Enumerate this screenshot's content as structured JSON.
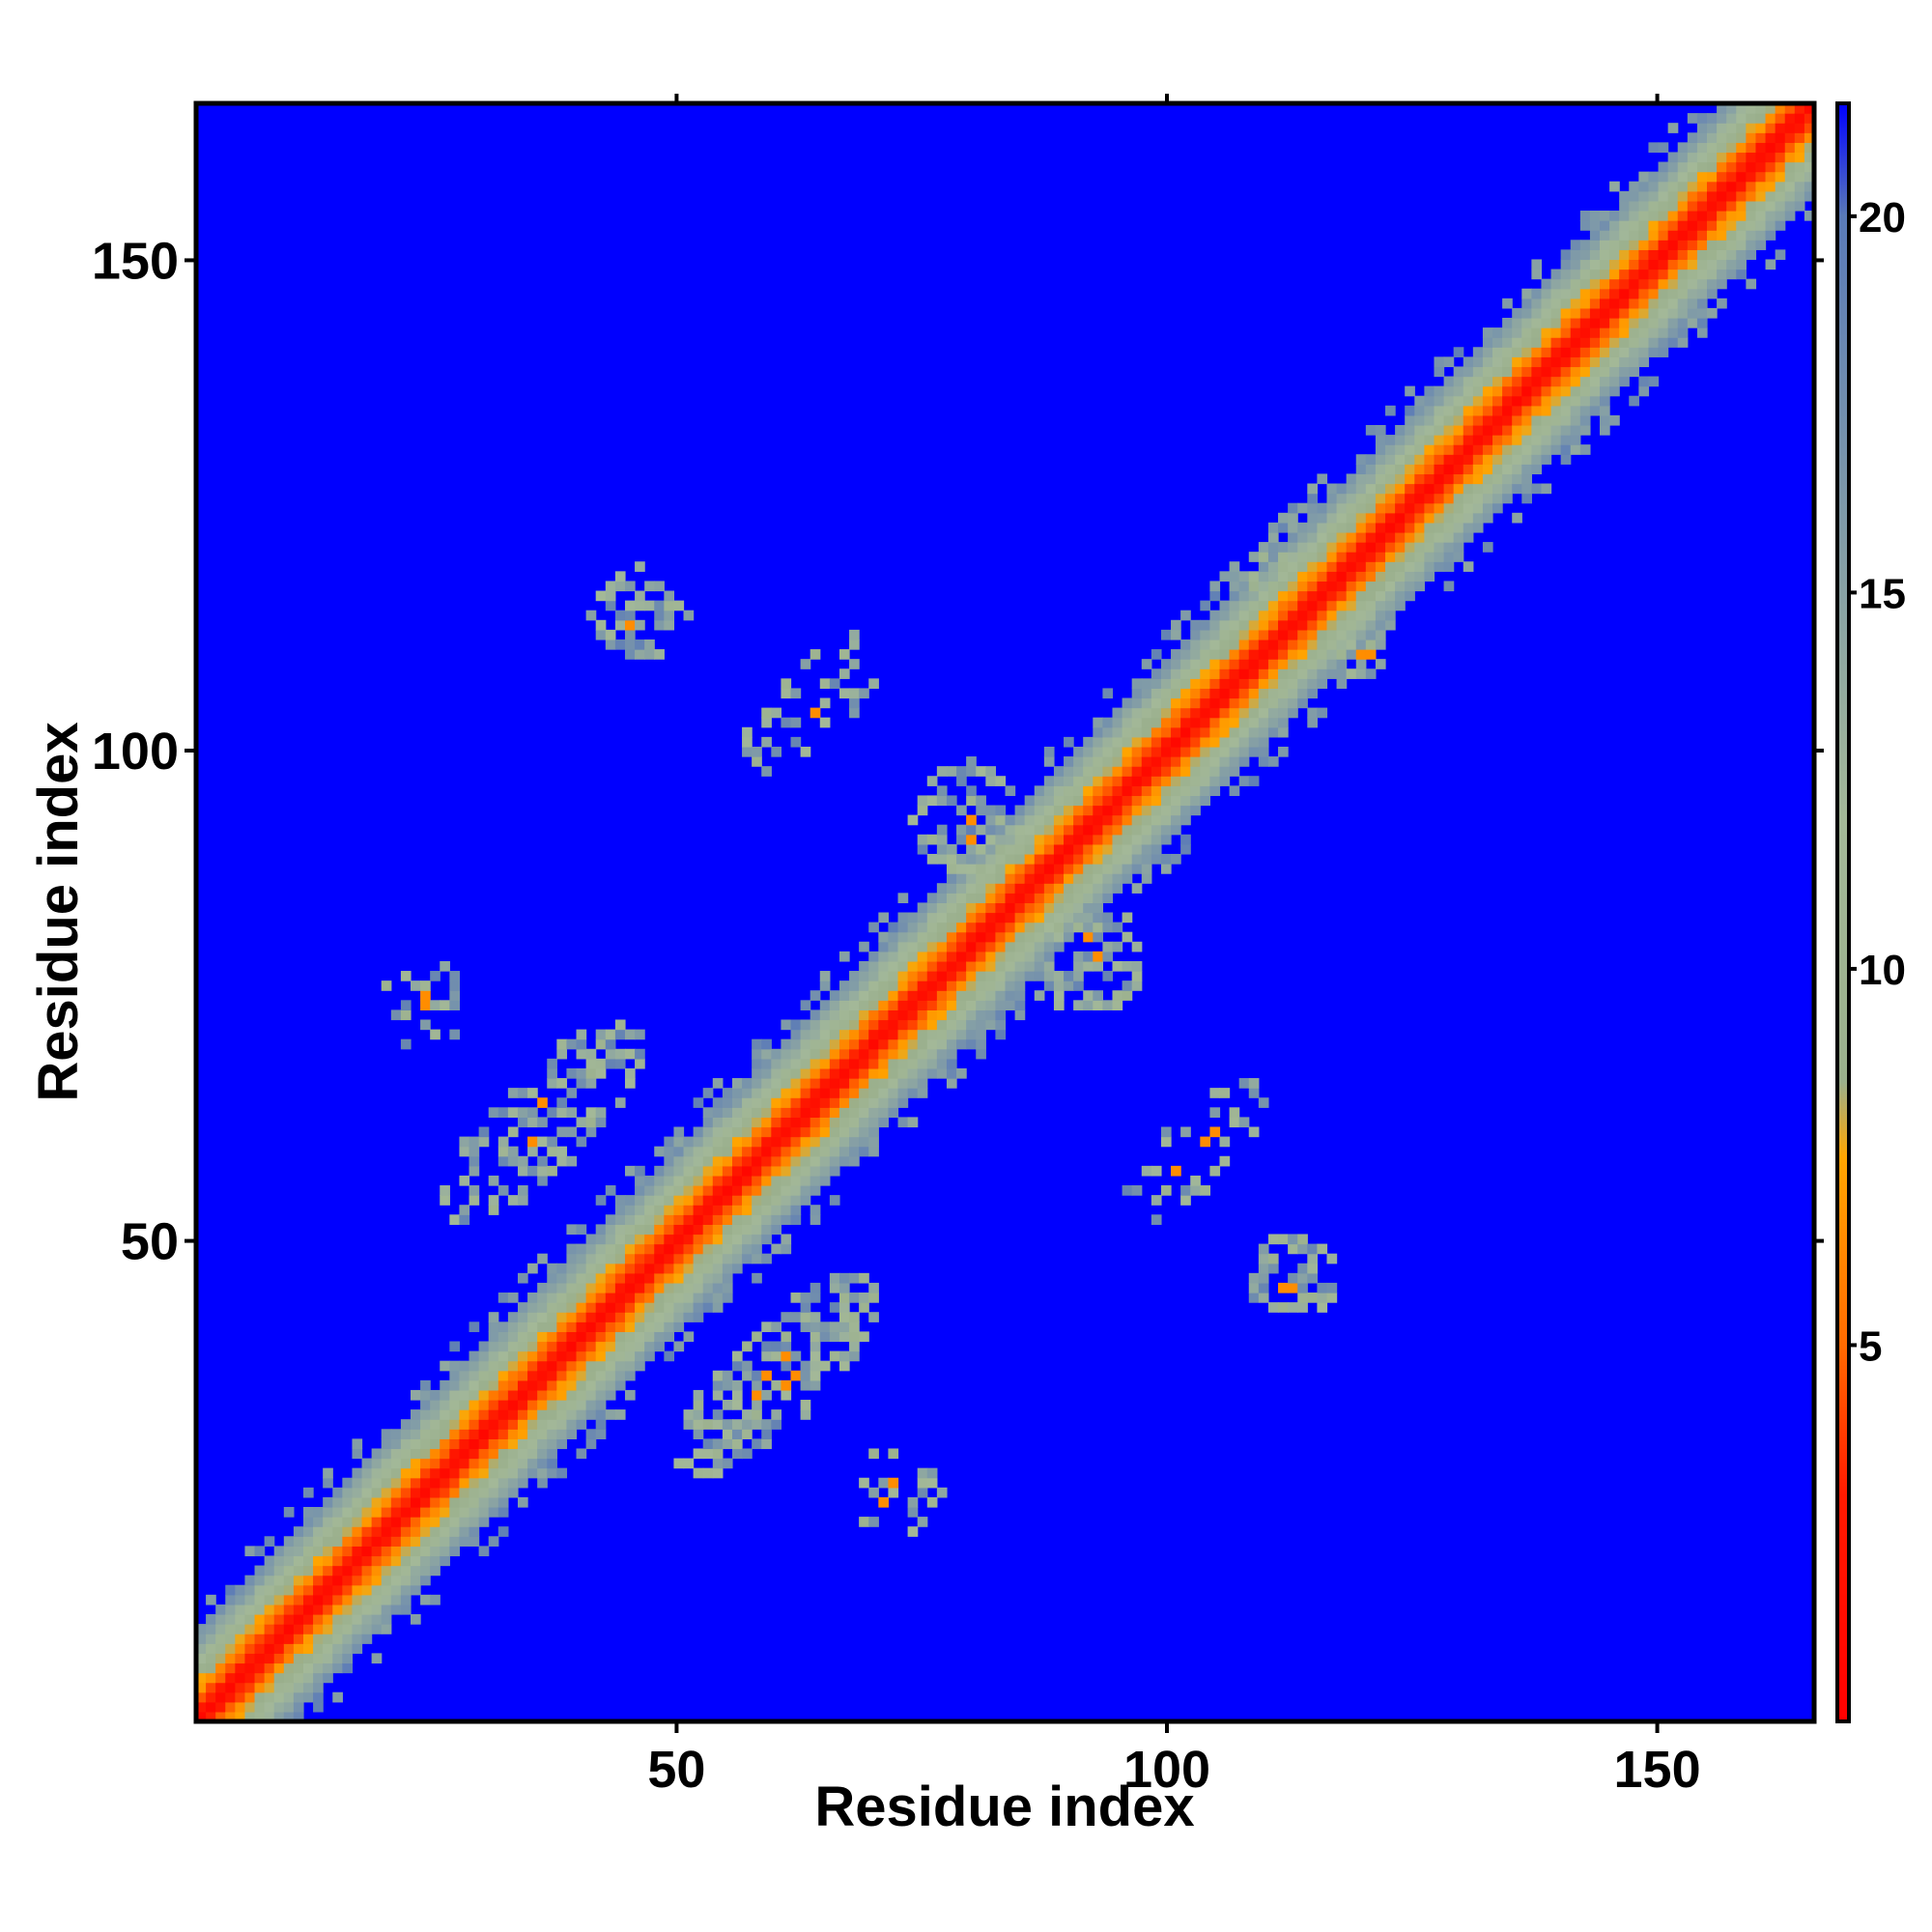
{
  "chart_data": {
    "type": "heatmap",
    "title": "",
    "xlabel": "Residue index",
    "ylabel": "Residue index",
    "n_residues": 166,
    "xlim": [
      1,
      166
    ],
    "ylim": [
      1,
      166
    ],
    "x_ticks": [
      50,
      100,
      150
    ],
    "y_ticks": [
      50,
      100,
      150
    ],
    "colorbar": {
      "ticks": [
        5,
        10,
        15,
        20
      ],
      "range": [
        0,
        21.5
      ],
      "cutoff": 20,
      "stops": [
        {
          "value": 0,
          "color": "#ff0000"
        },
        {
          "value": 3,
          "color": "#ff1a00"
        },
        {
          "value": 5,
          "color": "#ff6a00"
        },
        {
          "value": 7.5,
          "color": "#ffa500"
        },
        {
          "value": 8.5,
          "color": "#9aaf8c"
        },
        {
          "value": 12,
          "color": "#a3b898"
        },
        {
          "value": 16,
          "color": "#7f9aa8"
        },
        {
          "value": 20,
          "color": "#5a7ab8"
        },
        {
          "value": 21.5,
          "color": "#0000ff"
        }
      ]
    },
    "background_color": "#0000ff",
    "diagonal_band": {
      "contact_width": 2.5,
      "shell_width": 9
    },
    "contact_regions": [
      {
        "center_x": 60,
        "center_y": 36,
        "spread_along": 14,
        "spread_across": 5,
        "density": 0.55
      },
      {
        "center_x": 72,
        "center_y": 24,
        "spread_along": 5,
        "spread_across": 5,
        "density": 0.3
      },
      {
        "center_x": 36,
        "center_y": 62,
        "spread_along": 14,
        "spread_across": 5,
        "density": 0.55
      },
      {
        "center_x": 24,
        "center_y": 74,
        "spread_along": 5,
        "spread_across": 5,
        "density": 0.3
      },
      {
        "center_x": 113,
        "center_y": 46,
        "spread_along": 5,
        "spread_across": 5,
        "density": 0.55
      },
      {
        "center_x": 46,
        "center_y": 114,
        "spread_along": 5,
        "spread_across": 5,
        "density": 0.55
      },
      {
        "center_x": 103,
        "center_y": 59,
        "spread_along": 10,
        "spread_across": 4,
        "density": 0.3
      },
      {
        "center_x": 64,
        "center_y": 105,
        "spread_along": 10,
        "spread_across": 4,
        "density": 0.3
      },
      {
        "center_x": 92,
        "center_y": 79,
        "spread_along": 6,
        "spread_across": 6,
        "density": 0.55
      },
      {
        "center_x": 80,
        "center_y": 93,
        "spread_along": 6,
        "spread_across": 6,
        "density": 0.55
      },
      {
        "center_x": 120,
        "center_y": 110,
        "spread_along": 3,
        "spread_across": 3,
        "density": 0.6
      },
      {
        "center_x": 111,
        "center_y": 119,
        "spread_along": 3,
        "spread_across": 3,
        "density": 0.6
      }
    ]
  }
}
